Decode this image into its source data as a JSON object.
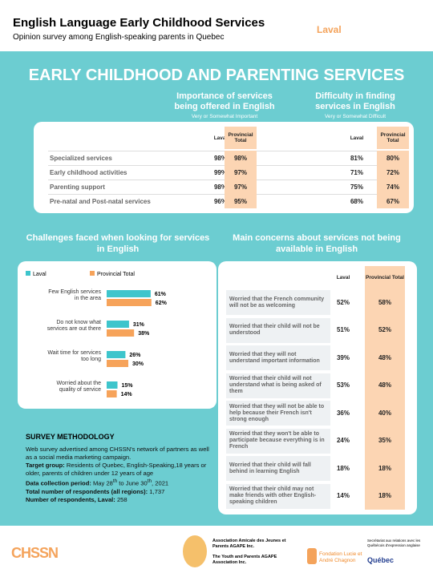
{
  "header": {
    "title": "English Language Early Childhood Services",
    "subtitle": "Opinion survey among English-speaking parents in Quebec",
    "region": "Laval"
  },
  "section_title": "EARLY CHILDHOOD AND PARENTING SERVICES",
  "services_table": {
    "importance_heading": "Importance of services being offered in English",
    "importance_note": "Very or Somewhat Important",
    "difficulty_heading": "Difficulty in finding services in English",
    "difficulty_note": "Very or Somewhat Difficult",
    "columns": [
      "Laval",
      "Provincial Total",
      "Laval",
      "Provincial Total"
    ],
    "rows": [
      {
        "label": "Specialized services",
        "cells": [
          "98%",
          "98%",
          "81%",
          "80%"
        ]
      },
      {
        "label": "Early childhood activities",
        "cells": [
          "99%",
          "97%",
          "71%",
          "72%"
        ]
      },
      {
        "label": "Parenting support",
        "cells": [
          "98%",
          "97%",
          "75%",
          "74%"
        ]
      },
      {
        "label": "Pre-natal and Post-natal services",
        "cells": [
          "96%",
          "95%",
          "68%",
          "67%"
        ]
      }
    ]
  },
  "chart_data": {
    "type": "bar",
    "orientation": "horizontal",
    "title": "Challenges faced when looking for services in English",
    "categories": [
      "Few English services in the area",
      "Do not know what services are out there",
      "Wait time for services too long",
      "Worried about the quality of service"
    ],
    "series": [
      {
        "name": "Laval",
        "color": "#3ec5cc",
        "values": [
          61,
          31,
          26,
          15
        ],
        "value_labels": [
          "61%",
          "31%",
          "26%",
          "15%"
        ]
      },
      {
        "name": "Provincial Total",
        "color": "#f6a35a",
        "values": [
          62,
          38,
          30,
          14
        ],
        "value_labels": [
          "62%",
          "38%",
          "30%",
          "14%"
        ]
      }
    ],
    "legend": "top"
  },
  "concerns_table": {
    "title": "Main concerns about services not being available in English",
    "columns": [
      "Laval",
      "Provincial Total"
    ],
    "rows": [
      {
        "label": "Worried that the French community will not be as welcoming",
        "cells": [
          "52%",
          "58%"
        ]
      },
      {
        "label": "Worried that their child will not be understood",
        "cells": [
          "51%",
          "52%"
        ]
      },
      {
        "label": "Worried that they will not understand important information",
        "cells": [
          "39%",
          "48%"
        ]
      },
      {
        "label": "Worried that their child will not understand what is being asked of them",
        "cells": [
          "53%",
          "48%"
        ]
      },
      {
        "label": "Worried that they will not be able to help because their French isn't strong enough",
        "cells": [
          "36%",
          "40%"
        ]
      },
      {
        "label": "Worried that they won't be able to participate because everything is in French",
        "cells": [
          "24%",
          "35%"
        ]
      },
      {
        "label": "Worried that their child will fall behind in learning English",
        "cells": [
          "18%",
          "18%"
        ]
      },
      {
        "label": "Worried that their child may not make friends with other English-speaking children",
        "cells": [
          "14%",
          "18%"
        ]
      }
    ]
  },
  "methodology": {
    "heading": "SURVEY METHODOLOGY",
    "intro": "Web survey advertised among CHSSN's network of partners as well as a social media marketing campaign.",
    "target_label": "Target group:",
    "target": "Residents of Quebec, English-Speaking,18 years or older, parents of children under 12 years of age",
    "period_label": "Data collection period:",
    "period": [
      "May 28",
      "th",
      " to June 30",
      "th",
      ", 2021"
    ],
    "total_label": "Total number of respondents (all regions):",
    "total": "1,737",
    "laval_label": "Number of respondents, Laval:",
    "laval": "258"
  },
  "footer": {
    "chssn": "CHSSN",
    "agape_fr": "Association Amicale des Jeunes et Parents AGAPE Inc.",
    "agape_en": "The Youth and Parents AGAPE Association Inc.",
    "chagnon": "Fondation Lucie et André Chagnon",
    "secretariat": "Secrétariat aux relations avec les Québécois d'expression anglaise",
    "quebec": "Québec"
  }
}
